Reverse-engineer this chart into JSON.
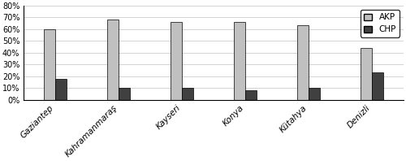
{
  "categories": [
    "Gaziantep",
    "Kahramanmaraş",
    "Kayseri",
    "Konya",
    "Kütahya",
    "Denizli"
  ],
  "akp_values": [
    0.6,
    0.68,
    0.66,
    0.66,
    0.63,
    0.44
  ],
  "chp_values": [
    0.18,
    0.1,
    0.1,
    0.08,
    0.1,
    0.23
  ],
  "akp_color": "#c0c0c0",
  "chp_color": "#404040",
  "bar_edge_color": "#000000",
  "ylim": [
    0,
    0.8
  ],
  "yticks": [
    0.0,
    0.1,
    0.2,
    0.3,
    0.4,
    0.5,
    0.6,
    0.7,
    0.8
  ],
  "ytick_labels": [
    "0%",
    "10%",
    "20%",
    "30%",
    "40%",
    "50%",
    "60%",
    "70%",
    "80%"
  ],
  "legend_labels": [
    "AKP",
    "CHP"
  ],
  "bar_width": 0.18,
  "figsize": [
    5.0,
    1.98
  ],
  "dpi": 100
}
